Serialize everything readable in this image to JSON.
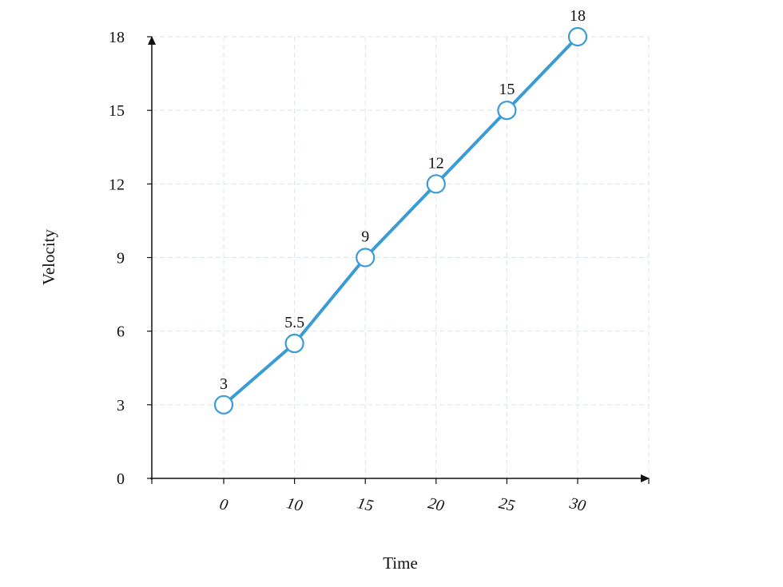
{
  "chart_data": {
    "type": "line",
    "title": "",
    "xlabel": "Time",
    "ylabel": "Velocity",
    "categories": [
      "0",
      "10",
      "15",
      "20",
      "25",
      "30"
    ],
    "series": [
      {
        "values": [
          3,
          5.5,
          9,
          12,
          15,
          18
        ],
        "color": "#3a9bd5"
      }
    ],
    "data_labels": [
      "3",
      "5.5",
      "9",
      "12",
      "15",
      "18"
    ],
    "y_ticks": [
      0,
      3,
      6,
      9,
      12,
      15,
      18
    ],
    "ylim": [
      0,
      18
    ],
    "grid": true,
    "legend": "none"
  }
}
